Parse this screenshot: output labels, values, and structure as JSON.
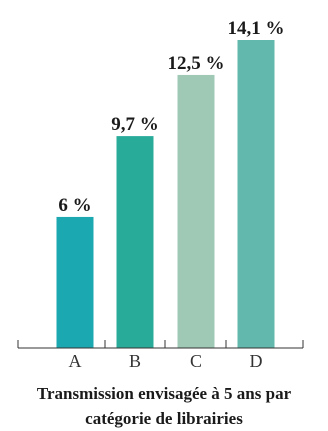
{
  "chart_data": {
    "type": "bar",
    "categories": [
      "A",
      "B",
      "C",
      "D"
    ],
    "values": [
      6,
      9.7,
      12.5,
      14.1
    ],
    "value_labels": [
      "6 %",
      "9,7 %",
      "12,5 %",
      "14,1 %"
    ],
    "ylim": [
      0,
      14.1
    ],
    "grid": false,
    "legend": "none",
    "colors": [
      "#1ba8b0",
      "#28ab98",
      "#9fc9b4",
      "#62b8ad"
    ],
    "title": "",
    "xlabel": "",
    "ylabel": ""
  },
  "caption": {
    "line1": "Transmission envisagée à 5 ans par",
    "line2": "catégorie de librairies"
  }
}
